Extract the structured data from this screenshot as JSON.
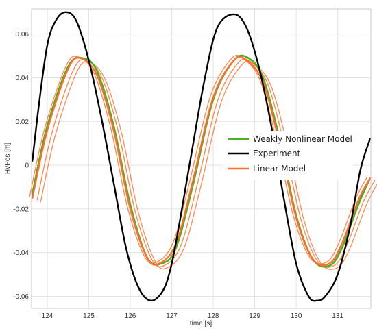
{
  "chart_data": {
    "type": "line",
    "title": "",
    "xlabel": "time [s]",
    "ylabel": "HvPos [m]",
    "xlim": [
      123.62,
      131.8
    ],
    "ylim": [
      -0.0655,
      0.0715
    ],
    "x_ticks": [
      124,
      125,
      126,
      127,
      128,
      129,
      130,
      131
    ],
    "y_ticks": [
      -0.06,
      -0.04,
      -0.02,
      0,
      0.02,
      0.04,
      0.06
    ],
    "x_tick_labels": [
      "124",
      "125",
      "126",
      "127",
      "128",
      "129",
      "130",
      "131"
    ],
    "y_tick_labels": [
      "-0.06",
      "-0.04",
      "-0.02",
      "0",
      "0.02",
      "0.04",
      "0.06"
    ],
    "grid": true,
    "legend_position": "right",
    "series": [
      {
        "name": "Experiment",
        "color": "#000000",
        "x": [
          123.64,
          123.8,
          124.0,
          124.2,
          124.44,
          124.7,
          125.0,
          125.3,
          125.6,
          125.9,
          126.2,
          126.5,
          126.8,
          127.0,
          127.2,
          127.5,
          127.8,
          128.1,
          128.5,
          128.8,
          129.1,
          129.4,
          129.7,
          130.0,
          130.3,
          130.5,
          130.7,
          131.0,
          131.3,
          131.55,
          131.78
        ],
        "y": [
          0.002,
          0.028,
          0.055,
          0.066,
          0.07,
          0.066,
          0.048,
          0.022,
          -0.008,
          -0.038,
          -0.056,
          -0.062,
          -0.057,
          -0.045,
          -0.025,
          0.008,
          0.04,
          0.063,
          0.069,
          0.063,
          0.045,
          0.018,
          -0.015,
          -0.045,
          -0.06,
          -0.062,
          -0.06,
          -0.05,
          -0.028,
          -0.002,
          0.012
        ]
      },
      {
        "name": "Weakly Nonlinear Model",
        "color": "#4caf20",
        "x": [
          123.64,
          124.0,
          124.5,
          124.85,
          125.2,
          125.6,
          126.0,
          126.4,
          126.75,
          127.1,
          127.5,
          128.0,
          128.5,
          128.85,
          129.2,
          129.6,
          130.0,
          130.4,
          130.8,
          131.1,
          131.5,
          131.78
        ],
        "y": [
          -0.013,
          0.018,
          0.045,
          0.049,
          0.043,
          0.018,
          -0.018,
          -0.042,
          -0.045,
          -0.038,
          -0.01,
          0.03,
          0.048,
          0.049,
          0.04,
          0.012,
          -0.023,
          -0.043,
          -0.046,
          -0.038,
          -0.018,
          -0.006
        ]
      },
      {
        "name": "Linear Model",
        "color": "#ff6d2a",
        "x": [
          123.64,
          124.0,
          124.5,
          124.8,
          125.2,
          125.6,
          126.0,
          126.4,
          126.7,
          127.1,
          127.5,
          128.0,
          128.5,
          128.8,
          129.2,
          129.6,
          130.0,
          130.4,
          130.8,
          131.1,
          131.5,
          131.78
        ],
        "y": [
          -0.015,
          0.016,
          0.044,
          0.049,
          0.041,
          0.016,
          -0.02,
          -0.042,
          -0.045,
          -0.036,
          -0.008,
          0.031,
          0.048,
          0.048,
          0.038,
          0.01,
          -0.024,
          -0.043,
          -0.045,
          -0.036,
          -0.016,
          -0.006
        ]
      }
    ]
  }
}
